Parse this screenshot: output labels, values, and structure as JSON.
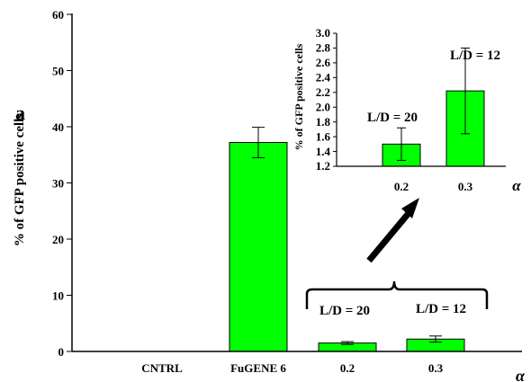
{
  "chart_data": [
    {
      "type": "bar",
      "title": "",
      "ylabel": "% of GFP positive cells",
      "xlabel": "α",
      "ylim": [
        0,
        60
      ],
      "yticks": [
        0,
        10,
        20,
        30,
        40,
        50,
        60
      ],
      "categories": [
        "CNTRL",
        "FuGENE 6",
        "0.2",
        "0.3"
      ],
      "values": [
        0,
        37.2,
        1.5,
        2.2
      ],
      "errors": [
        0,
        2.7,
        0.25,
        0.55
      ],
      "bar_color": "#00ff00",
      "panel_letter": "a",
      "group_labels": [
        "L/D = 20",
        "L/D = 12"
      ]
    },
    {
      "type": "bar",
      "title": "",
      "ylabel": "% of GFP positive cells",
      "xlabel": "α",
      "ylim": [
        1.2,
        3.0
      ],
      "yticks": [
        1.2,
        1.4,
        1.6,
        1.8,
        2.0,
        2.2,
        2.4,
        2.6,
        2.8,
        3.0
      ],
      "categories": [
        "0.2",
        "0.3"
      ],
      "values": [
        1.5,
        2.22
      ],
      "errors": [
        0.22,
        0.58
      ],
      "bar_color": "#00ff00",
      "bar_labels": [
        "L/D = 20",
        "L/D = 12"
      ]
    }
  ]
}
